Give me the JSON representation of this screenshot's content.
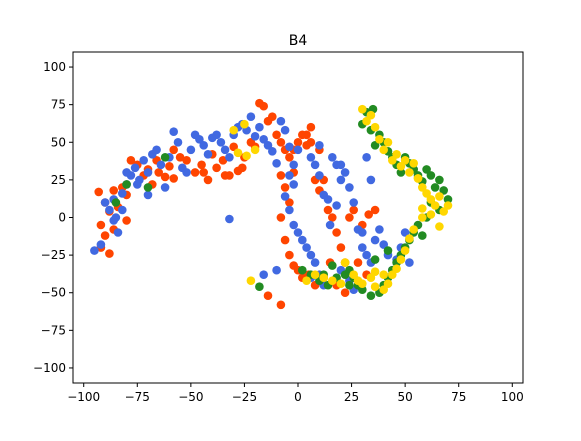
{
  "chart_data": {
    "type": "scatter",
    "title": "B4",
    "xlabel": "",
    "ylabel": "",
    "xlim": [
      -105,
      105
    ],
    "ylim": [
      -110,
      110
    ],
    "xticks": [
      -100,
      -75,
      -50,
      -25,
      0,
      25,
      50,
      75,
      100
    ],
    "yticks": [
      -100,
      -75,
      -50,
      -25,
      0,
      25,
      50,
      75,
      100
    ],
    "xtick_labels": [
      "−100",
      "−75",
      "−50",
      "−25",
      "0",
      "25",
      "50",
      "75",
      "100"
    ],
    "ytick_labels": [
      "−100",
      "−75",
      "−50",
      "−25",
      "0",
      "25",
      "50",
      "75",
      "100"
    ],
    "grid": false,
    "legend": "none",
    "series": [
      {
        "color": "#ff4500",
        "points": [
          [
            -93,
            17
          ],
          [
            -90,
            10
          ],
          [
            -88,
            4
          ],
          [
            -86,
            18
          ],
          [
            -84,
            7
          ],
          [
            -82,
            20
          ],
          [
            -80,
            15
          ],
          [
            -92,
            -5
          ],
          [
            -90,
            -12
          ],
          [
            -88,
            -24
          ],
          [
            -92,
            -20
          ],
          [
            -78,
            38
          ],
          [
            -75,
            35
          ],
          [
            -72,
            28
          ],
          [
            -70,
            32
          ],
          [
            -68,
            22
          ],
          [
            -65,
            30
          ],
          [
            -62,
            27
          ],
          [
            -60,
            34
          ],
          [
            -58,
            45
          ],
          [
            -55,
            40
          ],
          [
            -52,
            38
          ],
          [
            -48,
            30
          ],
          [
            -45,
            35
          ],
          [
            -42,
            25
          ],
          [
            -40,
            42
          ],
          [
            -38,
            33
          ],
          [
            -35,
            38
          ],
          [
            -32,
            28
          ],
          [
            -30,
            47
          ],
          [
            -28,
            31
          ],
          [
            -25,
            40
          ],
          [
            -22,
            50
          ],
          [
            -20,
            47
          ],
          [
            -18,
            76
          ],
          [
            -16,
            74
          ],
          [
            -14,
            64
          ],
          [
            -12,
            67
          ],
          [
            -10,
            55
          ],
          [
            -8,
            50
          ],
          [
            -6,
            45
          ],
          [
            -4,
            40
          ],
          [
            -2,
            30
          ],
          [
            0,
            50
          ],
          [
            2,
            55
          ],
          [
            4,
            48
          ],
          [
            6,
            60
          ],
          [
            -8,
            28
          ],
          [
            -6,
            20
          ],
          [
            -4,
            10
          ],
          [
            -8,
            0
          ],
          [
            -6,
            -15
          ],
          [
            -4,
            -25
          ],
          [
            -2,
            -32
          ],
          [
            0,
            -35
          ],
          [
            2,
            -40
          ],
          [
            5,
            -38
          ],
          [
            8,
            25
          ],
          [
            10,
            18
          ],
          [
            12,
            25
          ],
          [
            14,
            5
          ],
          [
            16,
            0
          ],
          [
            18,
            -10
          ],
          [
            20,
            -20
          ],
          [
            22,
            -30
          ],
          [
            24,
            0
          ],
          [
            26,
            5
          ],
          [
            30,
            -5
          ],
          [
            33,
            2
          ],
          [
            36,
            5
          ],
          [
            12,
            -40
          ],
          [
            15,
            -30
          ],
          [
            8,
            -45
          ],
          [
            18,
            -45
          ],
          [
            22,
            -50
          ],
          [
            32,
            -38
          ],
          [
            28,
            -30
          ],
          [
            -8,
            -58
          ],
          [
            -14,
            -52
          ],
          [
            -26,
            33
          ],
          [
            -34,
            28
          ],
          [
            -44,
            30
          ],
          [
            -58,
            26
          ],
          [
            -66,
            38
          ],
          [
            -86,
            -8
          ],
          [
            -80,
            -2
          ],
          [
            6,
            50
          ],
          [
            10,
            45
          ],
          [
            4,
            55
          ],
          [
            -2,
            45
          ]
        ]
      },
      {
        "color": "#4169e1",
        "points": [
          [
            -95,
            -22
          ],
          [
            -92,
            -18
          ],
          [
            -90,
            10
          ],
          [
            -88,
            5
          ],
          [
            -86,
            12
          ],
          [
            -85,
            0
          ],
          [
            -84,
            -10
          ],
          [
            -82,
            16
          ],
          [
            -80,
            22
          ],
          [
            -78,
            28
          ],
          [
            -76,
            33
          ],
          [
            -74,
            25
          ],
          [
            -72,
            38
          ],
          [
            -70,
            30
          ],
          [
            -68,
            42
          ],
          [
            -66,
            45
          ],
          [
            -64,
            35
          ],
          [
            -62,
            20
          ],
          [
            -60,
            40
          ],
          [
            -58,
            57
          ],
          [
            -56,
            50
          ],
          [
            -54,
            33
          ],
          [
            -52,
            30
          ],
          [
            -50,
            45
          ],
          [
            -48,
            55
          ],
          [
            -46,
            52
          ],
          [
            -44,
            48
          ],
          [
            -42,
            42
          ],
          [
            -40,
            53
          ],
          [
            -38,
            55
          ],
          [
            -36,
            50
          ],
          [
            -34,
            45
          ],
          [
            -32,
            40
          ],
          [
            -30,
            55
          ],
          [
            -28,
            60
          ],
          [
            -26,
            62
          ],
          [
            -24,
            58
          ],
          [
            -22,
            67
          ],
          [
            -20,
            54
          ],
          [
            -18,
            60
          ],
          [
            -16,
            52
          ],
          [
            -14,
            48
          ],
          [
            -12,
            44
          ],
          [
            -10,
            36
          ],
          [
            -8,
            64
          ],
          [
            -6,
            58
          ],
          [
            -4,
            47
          ],
          [
            -2,
            35
          ],
          [
            0,
            45
          ],
          [
            -32,
            -1
          ],
          [
            -70,
            15
          ],
          [
            -75,
            22
          ],
          [
            -80,
            30
          ],
          [
            -82,
            5
          ],
          [
            -86,
            -2
          ],
          [
            -6,
            14
          ],
          [
            -4,
            5
          ],
          [
            -2,
            -5
          ],
          [
            0,
            -10
          ],
          [
            2,
            -15
          ],
          [
            4,
            -20
          ],
          [
            6,
            -25
          ],
          [
            8,
            -30
          ],
          [
            10,
            -38
          ],
          [
            -4,
            28
          ],
          [
            -2,
            22
          ],
          [
            8,
            35
          ],
          [
            10,
            28
          ],
          [
            12,
            15
          ],
          [
            14,
            12
          ],
          [
            16,
            40
          ],
          [
            18,
            35
          ],
          [
            20,
            25
          ],
          [
            22,
            30
          ],
          [
            24,
            20
          ],
          [
            26,
            10
          ],
          [
            28,
            -8
          ],
          [
            30,
            -20
          ],
          [
            32,
            -25
          ],
          [
            34,
            -30
          ],
          [
            36,
            -15
          ],
          [
            38,
            -8
          ],
          [
            40,
            -18
          ],
          [
            42,
            -25
          ],
          [
            44,
            -35
          ],
          [
            46,
            -28
          ],
          [
            48,
            -20
          ],
          [
            50,
            -10
          ],
          [
            52,
            -30
          ],
          [
            15,
            -5
          ],
          [
            18,
            8
          ],
          [
            20,
            -35
          ],
          [
            24,
            -42
          ],
          [
            12,
            -45
          ],
          [
            6,
            -40
          ],
          [
            26,
            -48
          ],
          [
            30,
            -10
          ],
          [
            32,
            40
          ],
          [
            34,
            25
          ],
          [
            -10,
            -35
          ],
          [
            -16,
            -38
          ],
          [
            20,
            35
          ],
          [
            10,
            48
          ],
          [
            6,
            40
          ]
        ]
      },
      {
        "color": "#228b22",
        "points": [
          [
            32,
            70
          ],
          [
            35,
            72
          ],
          [
            30,
            62
          ],
          [
            34,
            58
          ],
          [
            38,
            55
          ],
          [
            36,
            48
          ],
          [
            40,
            50
          ],
          [
            42,
            44
          ],
          [
            44,
            40
          ],
          [
            46,
            35
          ],
          [
            48,
            30
          ],
          [
            50,
            40
          ],
          [
            52,
            36
          ],
          [
            54,
            32
          ],
          [
            56,
            28
          ],
          [
            58,
            24
          ],
          [
            60,
            32
          ],
          [
            62,
            28
          ],
          [
            64,
            20
          ],
          [
            66,
            25
          ],
          [
            68,
            18
          ],
          [
            70,
            12
          ],
          [
            66,
            5
          ],
          [
            60,
            0
          ],
          [
            56,
            -5
          ],
          [
            54,
            -10
          ],
          [
            52,
            -15
          ],
          [
            50,
            -20
          ],
          [
            48,
            -25
          ],
          [
            46,
            -30
          ],
          [
            44,
            -35
          ],
          [
            42,
            -40
          ],
          [
            40,
            -45
          ],
          [
            38,
            -50
          ],
          [
            34,
            -52
          ],
          [
            30,
            -48
          ],
          [
            28,
            -45
          ],
          [
            26,
            -40
          ],
          [
            24,
            -35
          ],
          [
            22,
            -38
          ],
          [
            18,
            -40
          ],
          [
            14,
            -45
          ],
          [
            10,
            -42
          ],
          [
            6,
            -38
          ],
          [
            2,
            -35
          ],
          [
            -18,
            -46
          ],
          [
            -80,
            22
          ],
          [
            -62,
            40
          ],
          [
            -85,
            10
          ],
          [
            -70,
            20
          ],
          [
            12,
            -38
          ],
          [
            16,
            -32
          ],
          [
            24,
            -45
          ],
          [
            36,
            -28
          ],
          [
            42,
            -22
          ],
          [
            58,
            -12
          ],
          [
            62,
            10
          ]
        ]
      },
      {
        "color": "#ffd700",
        "points": [
          [
            30,
            72
          ],
          [
            32,
            64
          ],
          [
            34,
            68
          ],
          [
            36,
            60
          ],
          [
            38,
            52
          ],
          [
            40,
            45
          ],
          [
            42,
            50
          ],
          [
            44,
            38
          ],
          [
            46,
            42
          ],
          [
            48,
            34
          ],
          [
            50,
            38
          ],
          [
            52,
            30
          ],
          [
            54,
            36
          ],
          [
            56,
            26
          ],
          [
            58,
            20
          ],
          [
            60,
            16
          ],
          [
            62,
            12
          ],
          [
            64,
            8
          ],
          [
            66,
            14
          ],
          [
            68,
            4
          ],
          [
            70,
            8
          ],
          [
            62,
            2
          ],
          [
            58,
            0
          ],
          [
            54,
            -8
          ],
          [
            52,
            -14
          ],
          [
            50,
            -22
          ],
          [
            48,
            -28
          ],
          [
            46,
            -34
          ],
          [
            44,
            -38
          ],
          [
            42,
            -44
          ],
          [
            40,
            -48
          ],
          [
            36,
            -46
          ],
          [
            34,
            -40
          ],
          [
            30,
            -44
          ],
          [
            26,
            -38
          ],
          [
            22,
            -30
          ],
          [
            20,
            -44
          ],
          [
            16,
            -42
          ],
          [
            12,
            -40
          ],
          [
            8,
            -38
          ],
          [
            4,
            -42
          ],
          [
            -22,
            -42
          ],
          [
            -30,
            58
          ],
          [
            -25,
            62
          ],
          [
            -20,
            45
          ],
          [
            -28,
            43
          ],
          [
            -24,
            41
          ],
          [
            58,
            6
          ],
          [
            66,
            -6
          ],
          [
            36,
            -36
          ],
          [
            40,
            -38
          ],
          [
            28,
            -42
          ],
          [
            56,
            26
          ]
        ]
      }
    ]
  }
}
